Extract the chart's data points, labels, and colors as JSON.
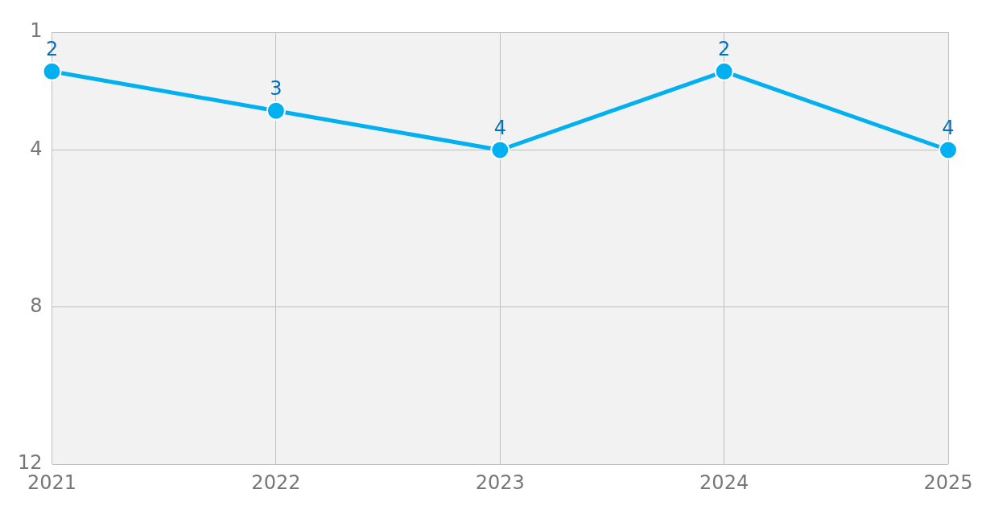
{
  "chart_data": {
    "type": "line",
    "categories": [
      "2021",
      "2022",
      "2023",
      "2024",
      "2025"
    ],
    "series": [
      {
        "color": "#00b0f0",
        "values": [
          2,
          3,
          4,
          2,
          4
        ]
      }
    ],
    "ylim": [
      12,
      1
    ],
    "yticks": [
      1,
      4,
      8,
      12
    ],
    "grid": true,
    "legend": false,
    "marker": "circle",
    "line_style": "solid",
    "data_labels": true
  }
}
